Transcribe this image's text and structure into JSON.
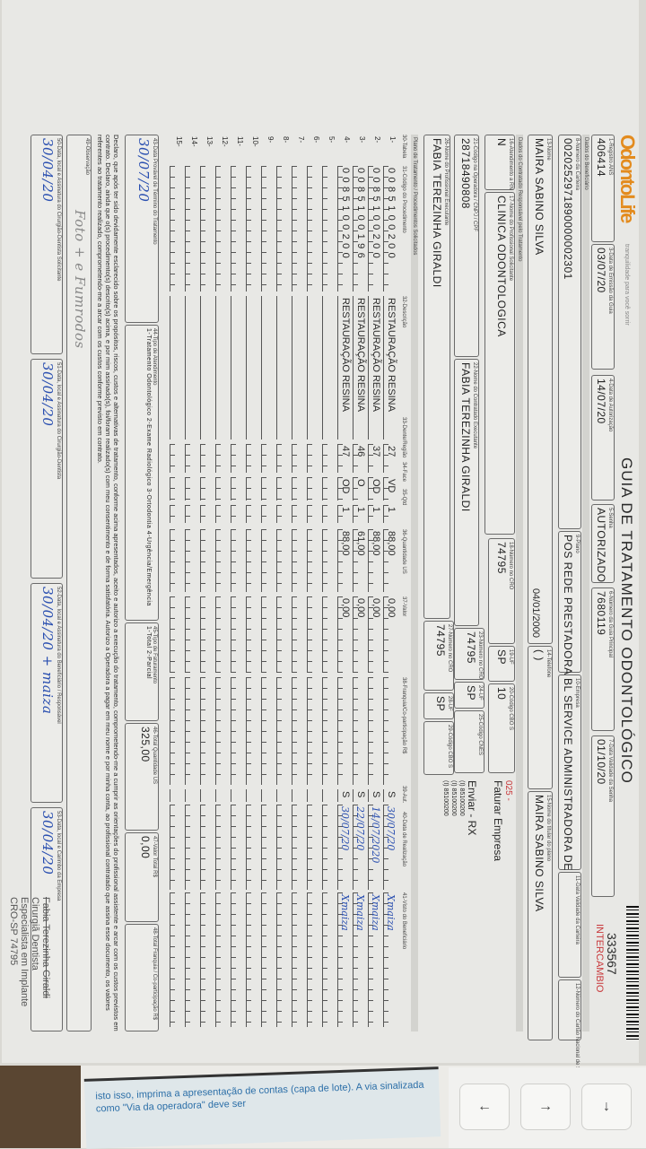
{
  "form": {
    "logo": "OdontoLife",
    "logo_tagline": "tranquilidade para você sorrir",
    "title": "GUIA DE TRATAMENTO ODONTOLÓGICO",
    "guide_number": "333567",
    "type": "INTERCAMBIO",
    "header": [
      {
        "label": "1-Registro ANS",
        "value": "406414"
      },
      {
        "label": "3-Data de Emissão da Guia",
        "value": "03/07/20"
      },
      {
        "label": "4-Data de Autorização",
        "value": "14/07/20"
      },
      {
        "label": "5-Senha",
        "value": "AUTORIZADO"
      },
      {
        "label": "6-Número da Guia Principal",
        "value": "7680119"
      },
      {
        "label": "7-Data Validade da Senha",
        "value": "01/10/20"
      }
    ],
    "section_beneficiary": "Dados do Beneficiário",
    "beneficiary": [
      {
        "label": "8-Número da Carteira",
        "value": "0020252971890000002301"
      },
      {
        "label": "9-Plano",
        "value": "POS REDE PRESTADORA"
      },
      {
        "label": "10-Empresa",
        "value": "BL SERVICE ADMINISTRADORA DE"
      },
      {
        "label": "11-Data Validade da Carteira",
        "value": ""
      },
      {
        "label": "12-Número do Cartão Nacional de Saúde",
        "value": ""
      },
      {
        "label": "13-Nome",
        "value": "MAIRA SABINO SILVA",
        "extra": "04/01/2000"
      },
      {
        "label": "14-Telefone",
        "value": "(  )"
      },
      {
        "label": "15-Nome do titular do plano",
        "value": "MAIRA SABINO SILVA"
      }
    ],
    "section_contracted": "Dados do Contratado Responsável pelo Tratamento",
    "contracted": [
      {
        "label": "16-Atendimento a RN",
        "value": "N"
      },
      {
        "label": "17-Nome do Profissional Solicitante",
        "value": "CLINICA ODONTOLOGICA"
      },
      {
        "label": "18-Número no CRO",
        "value": "74795"
      },
      {
        "label": "19-UF",
        "value": "SP"
      },
      {
        "label": "20-Código CBO S",
        "value": "10"
      },
      {
        "label": "21-Código na Operadora / CNPJ / CPF",
        "value": "28718490808"
      },
      {
        "label": "22-Nome do Contratado Executante",
        "value": "FABIA TEREZINHA GIRALDI"
      },
      {
        "label": "23-Número no CRO",
        "value": "74795"
      },
      {
        "label": "24-UF",
        "value": "SP"
      },
      {
        "label": "25-Código CNES",
        "value": ""
      },
      {
        "label": "26-Nome do Profissional Executante",
        "value": "FABIA TEREZINHA GIRALDI"
      },
      {
        "label": "27-Número no CRO",
        "value": "74795"
      },
      {
        "label": "28-UF",
        "value": "SP"
      },
      {
        "label": "29-Código CBO S",
        "value": ""
      }
    ],
    "notes": {
      "code": "025 -",
      "line1": "Faturar Empresa",
      "line2": "Enviar - RX",
      "line3": "(I) 85100200",
      "line4": "(I) 85100200",
      "line5": "(I) 85100200"
    },
    "section_plan": "Plano de Tratamento / Procedimentos Solicitados",
    "table_headers": [
      "30-Tabela",
      "31-Código do Procedimento",
      "32-Descrição",
      "33-Dente/Região",
      "34-Face",
      "35-Qtd",
      "36-Quantidade US",
      "37-Valor",
      "38-Franquia/Co-participação R$",
      "39-Aut.",
      "40-Data de Realização",
      "41-Visto do Beneficiário"
    ],
    "rows": [
      {
        "n": "1-",
        "code": "0085100200",
        "desc": "RESTAURAÇÃO RESINA",
        "tooth": "27",
        "face": "VD",
        "qty": "1",
        "us": "88,00",
        "value": "0,00",
        "aut": "S",
        "date": "30/07/20",
        "sign": "Xmaiza"
      },
      {
        "n": "2-",
        "code": "0085100200",
        "desc": "RESTAURAÇÃO RESINA",
        "tooth": "37",
        "face": "OD",
        "qty": "1",
        "us": "88,00",
        "value": "0,00",
        "aut": "S",
        "date": "14/07/2020",
        "sign": "Xmaiza"
      },
      {
        "n": "3-",
        "code": "0085100196",
        "desc": "RESTAURAÇÃO RESINA",
        "tooth": "46",
        "face": "O",
        "qty": "1",
        "us": "61,00",
        "value": "0,00",
        "aut": "S",
        "date": "22/07/20",
        "sign": "Xmaiza"
      },
      {
        "n": "4-",
        "code": "0085100200",
        "desc": "RESTAURAÇÃO RESINA",
        "tooth": "47",
        "face": "OD",
        "qty": "1",
        "us": "88,00",
        "value": "0,00",
        "aut": "S",
        "date": "30/07/20",
        "sign": "Xmaiza"
      },
      {
        "n": "5-"
      },
      {
        "n": "6-"
      },
      {
        "n": "7-"
      },
      {
        "n": "8-"
      },
      {
        "n": "9-"
      },
      {
        "n": "10-"
      },
      {
        "n": "11-"
      },
      {
        "n": "12-"
      },
      {
        "n": "13-"
      },
      {
        "n": "14-"
      },
      {
        "n": "15-"
      }
    ],
    "totals": [
      {
        "label": "43-Data Provável de Término do Tratamento",
        "value": "30/07/20"
      },
      {
        "label": "44-Tipo de Atendimento",
        "value": "1-Tratamento Odontológico 2-Exame Radiológico 3-Ortodontia 4-Urgência/Emergência"
      },
      {
        "label": "45-Tipo de Faturamento",
        "value": "1-Total 2-Parcial"
      },
      {
        "label": "46-Total Quantidade US",
        "value": "325,00"
      },
      {
        "label": "47-Valor Total R$",
        "value": "0,00"
      },
      {
        "label": "48-Total Franquia / Co-participação R$",
        "value": ""
      }
    ],
    "declaration": "Declaro, que após ter sido devidamente esclarecido sobre os propósitos, riscos, custos e alternativas de tratamento, conforme acima apresentados, aceito e autorizo a execução do tratamento, comprometendo-me a cumprir as orientações do profissional assistente e arcar com os custos previstos em contrato. Declaro, ainda que o(s) procedimento(s) descrito(s) acima, e por mim assinado(s), foi/foram realizado(s) com meu consentimento e de forma satisfatória. Autorizo a Operadora a pagar em meu nome e por minha conta, ao profissional contratado que assina esse documento, os valores referentes ao tratamento realizado, comprometendo-me a arcar com os custos conforme previsto em contrato.",
    "observation": {
      "label": "49-Observação",
      "value": "Foto + e Fumrodos"
    },
    "signatures": [
      {
        "label": "50-Data, local e Assinatura do Cirurgião-Dentista Solicitante",
        "value": "30/04/20"
      },
      {
        "label": "51-Data, local e Assinatura do Cirurgião-Dentista",
        "value": "30/04/20"
      },
      {
        "label": "52-Data, local e Assinatura do Beneficiário / Responsável",
        "value": "30/04/20 + maiza"
      },
      {
        "label": "53-Data, local e Carimbo da Empresa",
        "value": "30/04/20"
      }
    ],
    "stamp": {
      "line1": "Fabia Terezinha Giraldi",
      "line2": "Cirurgiã Dentista",
      "line3": "Especialista em Implante",
      "line4": "CRO-SP 74795"
    }
  },
  "desk": {
    "keys": [
      "←",
      "→",
      "↓"
    ],
    "card_text": "isto isso, imprima a apresentação de contas (capa de lote). A via sinalizada como \"Via da operadora\" deve ser"
  },
  "colors": {
    "logo": "#e38b1e",
    "intercambio": "#c8383b",
    "handwriting": "#2a4fb0"
  }
}
